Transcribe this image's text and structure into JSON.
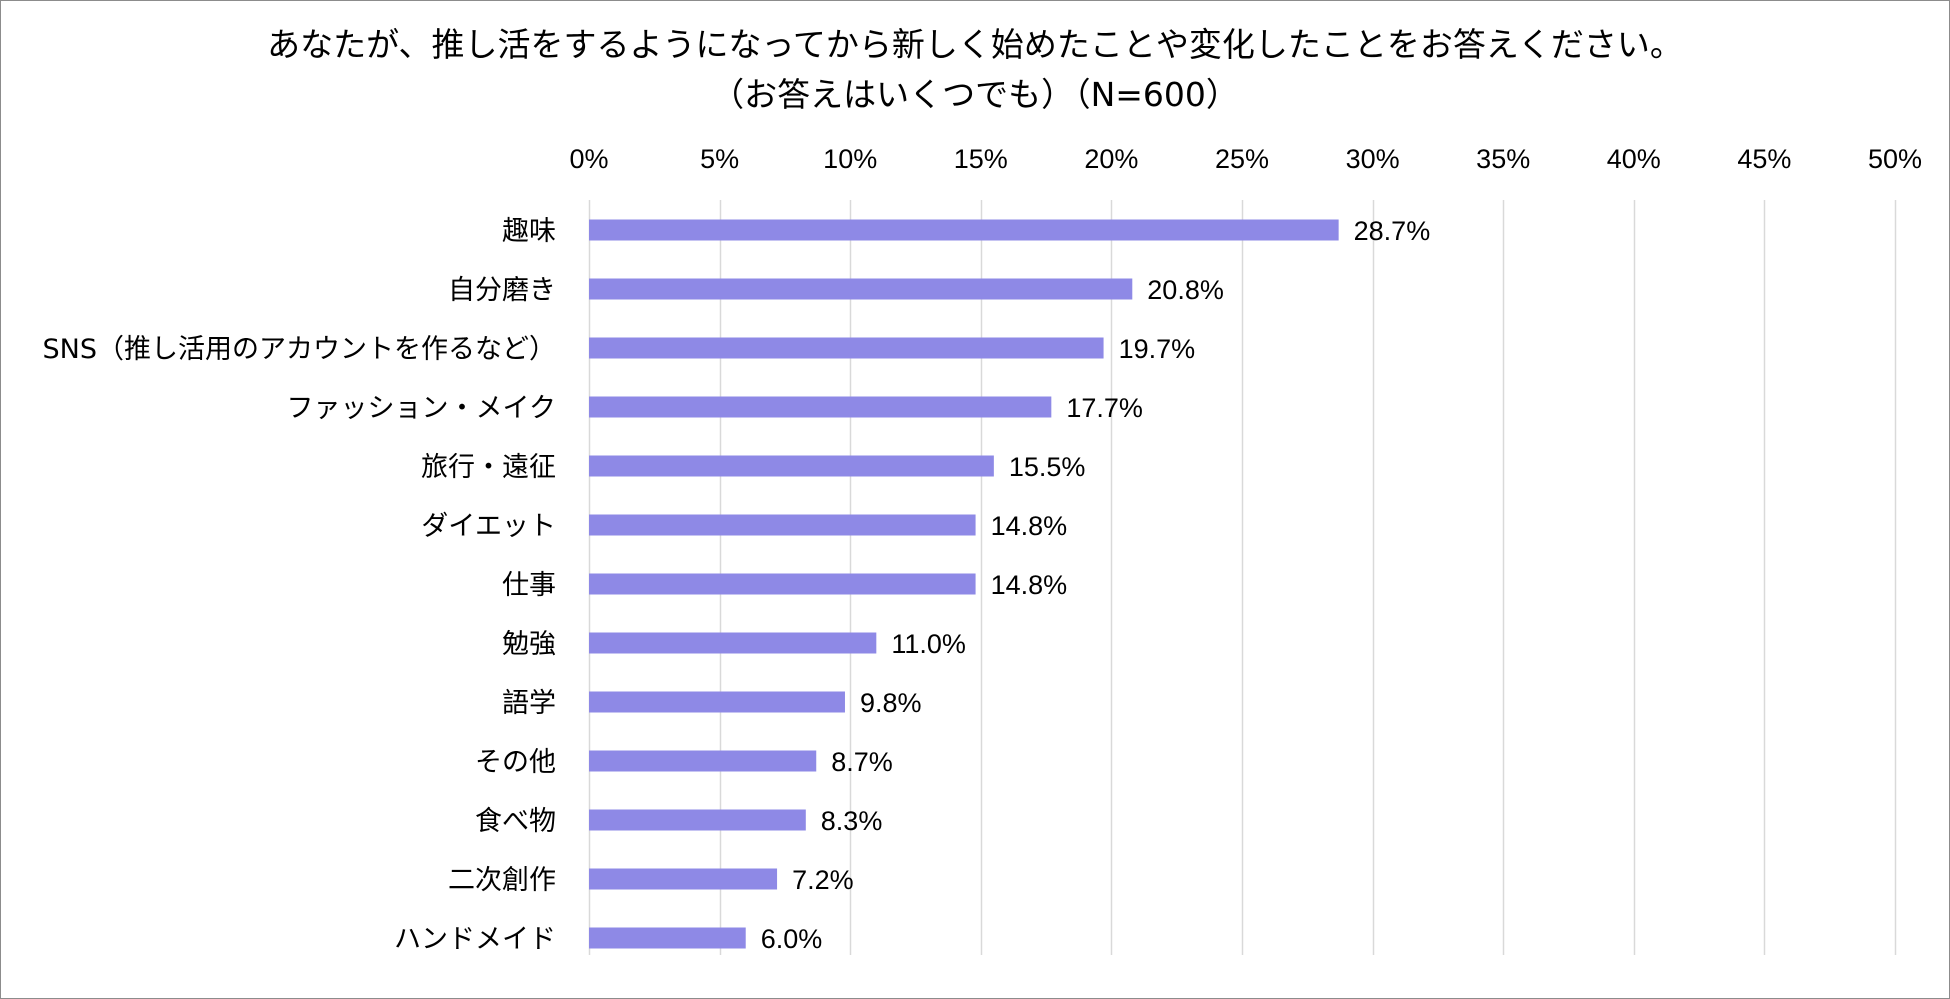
{
  "chart_data": {
    "type": "bar",
    "orientation": "horizontal",
    "title": "あなたが、推し活をするようになってから新しく始めたことや変化したことをお答えください。",
    "subtitle": "（お答えはいくつでも）（N=600）",
    "categories": [
      "趣味",
      "自分磨き",
      "SNS（推し活用のアカウントを作るなど）",
      "ファッション・メイク",
      "旅行・遠征",
      "ダイエット",
      "仕事",
      "勉強",
      "語学",
      "その他",
      "食べ物",
      "二次創作",
      "ハンドメイド"
    ],
    "values": [
      28.7,
      20.8,
      19.7,
      17.7,
      15.5,
      14.8,
      14.8,
      11.0,
      9.8,
      8.7,
      8.3,
      7.2,
      6.0
    ],
    "data_labels": [
      "28.7%",
      "20.8%",
      "19.7%",
      "17.7%",
      "15.5%",
      "14.8%",
      "14.8%",
      "11.0%",
      "9.8%",
      "8.7%",
      "8.3%",
      "7.2%",
      "6.0%"
    ],
    "xlim": [
      0,
      50
    ],
    "x_ticks": [
      0,
      5,
      10,
      15,
      20,
      25,
      30,
      35,
      40,
      45,
      50
    ],
    "x_tick_labels": [
      "0%",
      "5%",
      "10%",
      "15%",
      "20%",
      "25%",
      "30%",
      "35%",
      "40%",
      "45%",
      "50%"
    ],
    "x_axis_position": "top",
    "grid": true,
    "legend": "none",
    "bar_color": "#8e89e6",
    "grid_color": "#d9d9d9"
  }
}
